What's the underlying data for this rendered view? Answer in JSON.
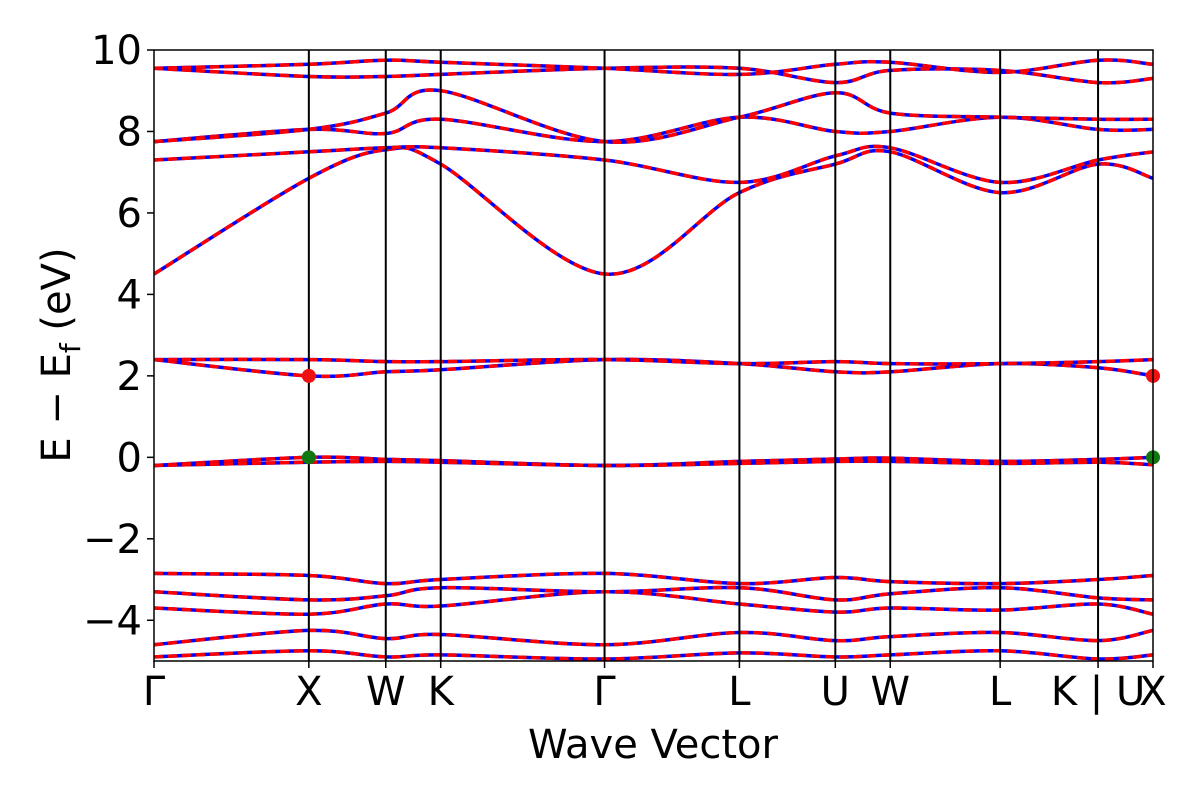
{
  "chart_data": {
    "type": "line",
    "title": "",
    "xlabel": "Wave Vector",
    "ylabel": "E − E",
    "ylabel_sub": "f",
    "ylabel_unit": " (eV)",
    "ylim": [
      -5,
      10
    ],
    "yticks": [
      -4,
      -2,
      0,
      2,
      4,
      6,
      8,
      10
    ],
    "ytick_labels": [
      "−4",
      "−2",
      "0",
      "2",
      "4",
      "6",
      "8",
      "10"
    ],
    "xlim": [
      0,
      10
    ],
    "kpoints": [
      {
        "label": "Γ",
        "x": 0.0
      },
      {
        "label": "X",
        "x": 1.55
      },
      {
        "label": "W",
        "x": 2.32
      },
      {
        "label": "K",
        "x": 2.87
      },
      {
        "label": "Γ",
        "x": 4.51
      },
      {
        "label": "L",
        "x": 5.86
      },
      {
        "label": "U",
        "x": 6.82
      },
      {
        "label": "W",
        "x": 7.37
      },
      {
        "label": "L",
        "x": 8.47
      },
      {
        "label": "K | U",
        "x": 9.45
      },
      {
        "label": "X",
        "x": 10.0
      }
    ],
    "grid": false,
    "colors": {
      "band_primary": "#0000ff",
      "band_overlay": "#ff0000",
      "cbm_marker": "#ee1111",
      "vbm_marker": "#117711"
    },
    "markers": [
      {
        "name": "CBM",
        "points": [
          [
            1.55,
            2.0
          ],
          [
            10.0,
            2.0
          ]
        ],
        "color": "#ee1111"
      },
      {
        "name": "VBM",
        "points": [
          [
            1.55,
            0.0
          ],
          [
            10.0,
            0.0
          ]
        ],
        "color": "#117711"
      }
    ],
    "series": [
      {
        "values": [
          [
            0,
            -4.9
          ],
          [
            1.55,
            -4.75
          ],
          [
            2.32,
            -4.9
          ],
          [
            2.87,
            -4.85
          ],
          [
            4.51,
            -4.95
          ],
          [
            5.86,
            -4.8
          ],
          [
            6.82,
            -4.9
          ],
          [
            7.37,
            -4.85
          ],
          [
            8.47,
            -4.75
          ],
          [
            9.45,
            -4.95
          ],
          [
            10,
            -4.85
          ]
        ]
      },
      {
        "values": [
          [
            0,
            -4.6
          ],
          [
            1.55,
            -4.25
          ],
          [
            2.32,
            -4.45
          ],
          [
            2.87,
            -4.35
          ],
          [
            4.51,
            -4.6
          ],
          [
            5.86,
            -4.3
          ],
          [
            6.82,
            -4.5
          ],
          [
            7.37,
            -4.4
          ],
          [
            8.47,
            -4.3
          ],
          [
            9.45,
            -4.5
          ],
          [
            10,
            -4.25
          ]
        ]
      },
      {
        "values": [
          [
            0,
            -3.7
          ],
          [
            1.55,
            -3.85
          ],
          [
            2.32,
            -3.6
          ],
          [
            2.87,
            -3.65
          ],
          [
            4.51,
            -3.3
          ],
          [
            5.86,
            -3.6
          ],
          [
            6.82,
            -3.8
          ],
          [
            7.37,
            -3.7
          ],
          [
            8.47,
            -3.75
          ],
          [
            9.45,
            -3.6
          ],
          [
            10,
            -3.85
          ]
        ]
      },
      {
        "values": [
          [
            0,
            -3.3
          ],
          [
            1.55,
            -3.5
          ],
          [
            2.32,
            -3.4
          ],
          [
            2.87,
            -3.2
          ],
          [
            4.51,
            -3.3
          ],
          [
            5.86,
            -3.2
          ],
          [
            6.82,
            -3.5
          ],
          [
            7.37,
            -3.35
          ],
          [
            8.47,
            -3.2
          ],
          [
            9.45,
            -3.45
          ],
          [
            10,
            -3.5
          ]
        ]
      },
      {
        "values": [
          [
            0,
            -2.85
          ],
          [
            1.55,
            -2.9
          ],
          [
            2.32,
            -3.1
          ],
          [
            2.87,
            -3.0
          ],
          [
            4.51,
            -2.85
          ],
          [
            5.86,
            -3.1
          ],
          [
            6.82,
            -2.95
          ],
          [
            7.37,
            -3.05
          ],
          [
            8.47,
            -3.1
          ],
          [
            9.45,
            -3.0
          ],
          [
            10,
            -2.9
          ]
        ]
      },
      {
        "values": [
          [
            0,
            -0.2
          ],
          [
            1.55,
            0.0
          ],
          [
            2.32,
            -0.05
          ],
          [
            2.87,
            -0.08
          ],
          [
            4.51,
            -0.2
          ],
          [
            5.86,
            -0.1
          ],
          [
            6.82,
            -0.04
          ],
          [
            7.37,
            -0.02
          ],
          [
            8.47,
            -0.1
          ],
          [
            9.45,
            -0.05
          ],
          [
            10,
            0.0
          ]
        ]
      },
      {
        "values": [
          [
            0,
            -0.2
          ],
          [
            1.55,
            -0.12
          ],
          [
            2.32,
            -0.1
          ],
          [
            2.87,
            -0.12
          ],
          [
            4.51,
            -0.2
          ],
          [
            5.86,
            -0.15
          ],
          [
            6.82,
            -0.1
          ],
          [
            7.37,
            -0.1
          ],
          [
            8.47,
            -0.15
          ],
          [
            9.45,
            -0.12
          ],
          [
            10,
            -0.18
          ]
        ]
      },
      {
        "values": [
          [
            0,
            2.4
          ],
          [
            1.55,
            2.0
          ],
          [
            2.32,
            2.1
          ],
          [
            2.87,
            2.15
          ],
          [
            4.51,
            2.4
          ],
          [
            5.86,
            2.3
          ],
          [
            6.82,
            2.1
          ],
          [
            7.37,
            2.1
          ],
          [
            8.47,
            2.3
          ],
          [
            9.45,
            2.2
          ],
          [
            10,
            2.0
          ]
        ]
      },
      {
        "values": [
          [
            0,
            2.4
          ],
          [
            1.55,
            2.4
          ],
          [
            2.32,
            2.35
          ],
          [
            2.87,
            2.35
          ],
          [
            4.51,
            2.4
          ],
          [
            5.86,
            2.3
          ],
          [
            6.82,
            2.35
          ],
          [
            7.37,
            2.3
          ],
          [
            8.47,
            2.3
          ],
          [
            9.45,
            2.35
          ],
          [
            10,
            2.4
          ]
        ]
      },
      {
        "values": [
          [
            0,
            4.5
          ],
          [
            1.55,
            6.85
          ],
          [
            2.32,
            7.55
          ],
          [
            2.87,
            7.2
          ],
          [
            4.51,
            4.5
          ],
          [
            5.86,
            6.5
          ],
          [
            6.82,
            7.2
          ],
          [
            7.37,
            7.5
          ],
          [
            8.47,
            6.5
          ],
          [
            9.45,
            7.2
          ],
          [
            10,
            6.85
          ]
        ]
      },
      {
        "values": [
          [
            0,
            7.3
          ],
          [
            1.55,
            7.5
          ],
          [
            2.32,
            7.6
          ],
          [
            2.87,
            7.6
          ],
          [
            4.51,
            7.3
          ],
          [
            5.86,
            6.75
          ],
          [
            6.82,
            7.4
          ],
          [
            7.37,
            7.6
          ],
          [
            8.47,
            6.75
          ],
          [
            9.45,
            7.3
          ],
          [
            10,
            7.5
          ]
        ]
      },
      {
        "values": [
          [
            0,
            7.75
          ],
          [
            1.55,
            8.05
          ],
          [
            2.32,
            7.95
          ],
          [
            2.87,
            8.3
          ],
          [
            4.51,
            7.75
          ],
          [
            5.86,
            8.35
          ],
          [
            6.82,
            8.0
          ],
          [
            7.37,
            8.0
          ],
          [
            8.47,
            8.35
          ],
          [
            9.45,
            8.05
          ],
          [
            10,
            8.05
          ]
        ]
      },
      {
        "values": [
          [
            0,
            7.75
          ],
          [
            1.55,
            8.05
          ],
          [
            2.32,
            8.45
          ],
          [
            2.87,
            9.0
          ],
          [
            4.51,
            7.75
          ],
          [
            5.86,
            8.35
          ],
          [
            6.82,
            8.95
          ],
          [
            7.37,
            8.45
          ],
          [
            8.47,
            8.35
          ],
          [
            9.45,
            8.3
          ],
          [
            10,
            8.3
          ]
        ]
      },
      {
        "values": [
          [
            0,
            9.55
          ],
          [
            1.55,
            9.35
          ],
          [
            2.32,
            9.35
          ],
          [
            2.87,
            9.4
          ],
          [
            4.51,
            9.55
          ],
          [
            5.86,
            9.55
          ],
          [
            6.82,
            9.2
          ],
          [
            7.37,
            9.5
          ],
          [
            8.47,
            9.5
          ],
          [
            9.45,
            9.2
          ],
          [
            10,
            9.3
          ]
        ]
      },
      {
        "values": [
          [
            0,
            9.55
          ],
          [
            1.55,
            9.65
          ],
          [
            2.32,
            9.75
          ],
          [
            2.87,
            9.7
          ],
          [
            4.51,
            9.55
          ],
          [
            5.86,
            9.4
          ],
          [
            6.82,
            9.65
          ],
          [
            7.37,
            9.7
          ],
          [
            8.47,
            9.45
          ],
          [
            9.45,
            9.75
          ],
          [
            10,
            9.65
          ]
        ]
      }
    ]
  }
}
